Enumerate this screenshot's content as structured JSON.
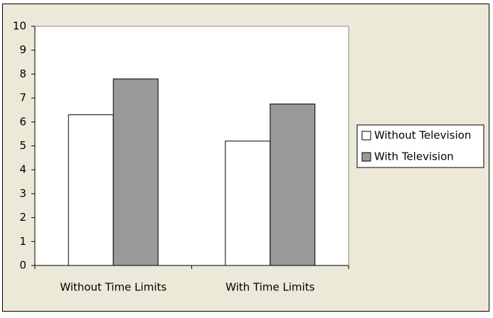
{
  "chart_data": {
    "type": "bar",
    "categories": [
      "Without Time Limits",
      "With Time Limits"
    ],
    "series": [
      {
        "name": "Without Television",
        "color": "#ffffff",
        "values": [
          6.3,
          5.2
        ]
      },
      {
        "name": "With Television",
        "color": "#999999",
        "values": [
          7.8,
          6.75
        ]
      }
    ],
    "ylim": [
      0,
      10
    ],
    "yticks": [
      0,
      1,
      2,
      3,
      4,
      5,
      6,
      7,
      8,
      9,
      10
    ],
    "grid": false,
    "legend": "right"
  }
}
